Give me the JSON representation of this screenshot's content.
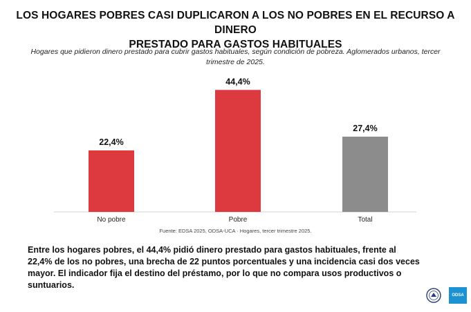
{
  "header": {
    "title_line1": "LOS HOGARES POBRES CASI DUPLICARON A LOS NO POBRES EN EL RECURSO A DINERO",
    "title_line2": "PRESTADO PARA GASTOS HABITUALES",
    "subtitle_line1": "Hogares que pidieron dinero prestado para cubrir gastos habituales, según condición de pobreza. Aglomerados urbanos, tercer",
    "subtitle_line2": "trimestre de 2025."
  },
  "chart_data": {
    "type": "bar",
    "categories": [
      "No pobre",
      "Pobre",
      "Total"
    ],
    "values": [
      22.4,
      44.4,
      27.4
    ],
    "value_labels": [
      "22,4%",
      "44,4%",
      "27,4%"
    ],
    "colors": [
      "#dc3a3e",
      "#dc3a3e",
      "#8c8c8c"
    ],
    "ylim": [
      0,
      50
    ],
    "grid": false,
    "legend": "none"
  },
  "source": "Fuente: EDSA 2025, ODSA-UCA · Hogares, tercer trimestre 2025.",
  "paragraph": {
    "line1": "Entre los hogares pobres, el 44,4% pidió dinero prestado para gastos habituales, frente al",
    "line2": "22,4% de los no pobres, una brecha de 22 puntos porcentuales y una incidencia casi dos veces",
    "line3": "mayor. El indicador fija el destino del préstamo, por lo que no compara usos productivos o",
    "line4": "suntuarios."
  },
  "logos": {
    "odsa_label": "ODSA",
    "odsa_color": "#1c92d2",
    "seal_icon": "university-seal-icon"
  }
}
